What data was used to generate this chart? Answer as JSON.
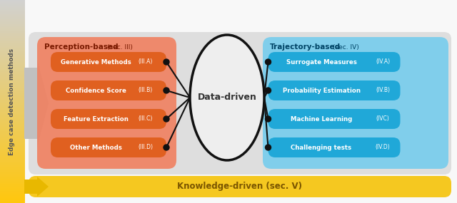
{
  "fig_width": 6.4,
  "fig_height": 2.85,
  "dpi": 100,
  "bg_color": "#f5f5f5",
  "sidebar_text": "Edge case detection methods",
  "sidebar_text_color": "#555555",
  "perception_title": "Perception-based",
  "perception_subtitle": "(sec. III)",
  "perception_title_color": "#7a1a00",
  "trajectory_title": "Trajectory-based",
  "trajectory_subtitle": "(sec. IV)",
  "trajectory_title_color": "#004466",
  "left_pills": [
    {
      "label": "Generative Methods",
      "suffix": "(III.A)"
    },
    {
      "label": "Confidence Score",
      "suffix": "(III.B)"
    },
    {
      "label": "Feature Extraction",
      "suffix": "(III.C)"
    },
    {
      "label": "Other Methods",
      "suffix": "(III.D)"
    }
  ],
  "right_pills": [
    {
      "label": "Surrogate Measures",
      "suffix": "(IV.A)"
    },
    {
      "label": "Probability Estimation",
      "suffix": "(IV.B)"
    },
    {
      "label": "Machine Learning",
      "suffix": "(IVC)"
    },
    {
      "label": "Challenging tests",
      "suffix": "(IV.D)"
    }
  ],
  "pill_color_left": "#e06020",
  "pill_color_right": "#20a8d8",
  "center_text": "Data-driven",
  "center_text_color": "#333333",
  "knowledge_text": "Knowledge-driven (sec. V)",
  "knowledge_text_color": "#7a5500"
}
